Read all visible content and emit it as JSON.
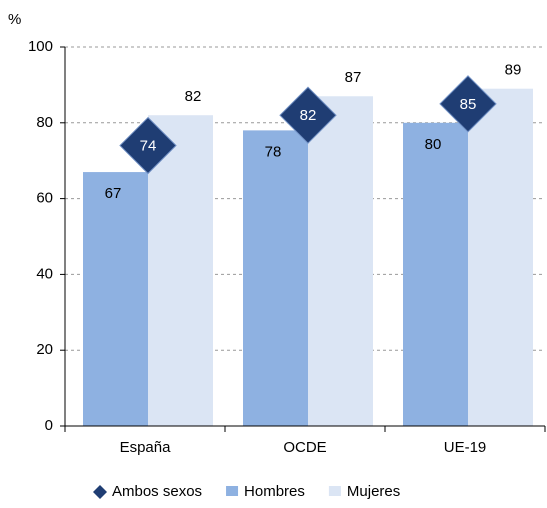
{
  "chart_data": {
    "type": "bar",
    "y_label": "%",
    "categories": [
      "España",
      "OCDE",
      "UE-19"
    ],
    "series": [
      {
        "name": "Ambos sexos",
        "color": "#1f3d73",
        "marker": "diamond",
        "values": [
          74,
          82,
          85
        ]
      },
      {
        "name": "Hombres",
        "color": "#8eb1e1",
        "values": [
          67,
          78,
          80
        ]
      },
      {
        "name": "Mujeres",
        "color": "#dbe5f4",
        "values": [
          82,
          87,
          89
        ]
      }
    ],
    "ylim": [
      0,
      100
    ],
    "yticks": [
      0,
      20,
      40,
      60,
      80,
      100
    ],
    "grid": true,
    "legend": "bottom"
  }
}
